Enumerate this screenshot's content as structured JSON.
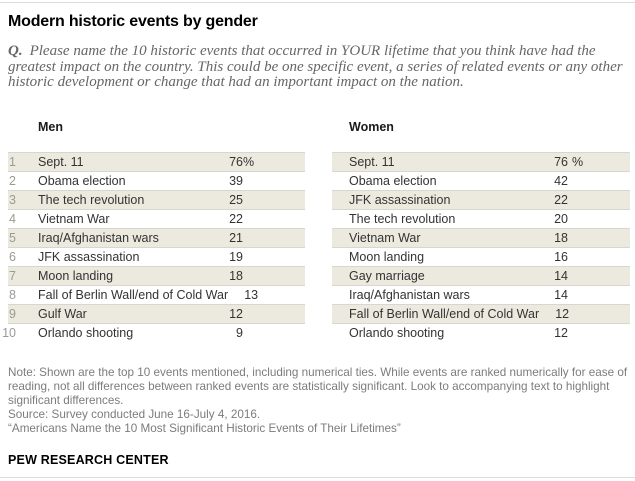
{
  "figure": {
    "title": "Modern historic events by gender",
    "question": {
      "label": "Q.",
      "lines": [
        "Please name the 10 historic events that occurred in YOUR lifetime that you think have had the",
        "greatest impact on the country. This could be one specific event, a series of related events or any other",
        "historic development or change that had an important impact on the nation."
      ]
    },
    "tables": [
      {
        "header": "Men",
        "rows": [
          {
            "rank": "1",
            "event": "Sept. 11",
            "value": "76",
            "pct": "%"
          },
          {
            "rank": "2",
            "event": "Obama election",
            "value": "39",
            "pct": ""
          },
          {
            "rank": "3",
            "event": "The tech revolution",
            "value": "25",
            "pct": ""
          },
          {
            "rank": "4",
            "event": "Vietnam War",
            "value": "22",
            "pct": ""
          },
          {
            "rank": "5",
            "event": "Iraq/Afghanistan wars",
            "value": "21",
            "pct": ""
          },
          {
            "rank": "6",
            "event": "JFK assassination",
            "value": "19",
            "pct": ""
          },
          {
            "rank": "7",
            "event": "Moon landing",
            "value": "18",
            "pct": ""
          },
          {
            "rank": "8",
            "event": "Fall of Berlin Wall/end of Cold War",
            "value": "13",
            "pct": ""
          },
          {
            "rank": "9",
            "event": "Gulf War",
            "value": "12",
            "pct": ""
          },
          {
            "rank": "10",
            "event": "Orlando shooting",
            "value": "9",
            "pct": ""
          }
        ]
      },
      {
        "header": "Women",
        "rows": [
          {
            "rank": "",
            "event": "Sept. 11",
            "value": "76",
            "pct": "%"
          },
          {
            "rank": "",
            "event": "Obama election",
            "value": "42",
            "pct": ""
          },
          {
            "rank": "",
            "event": "JFK assassination",
            "value": "22",
            "pct": ""
          },
          {
            "rank": "",
            "event": "The tech revolution",
            "value": "20",
            "pct": ""
          },
          {
            "rank": "",
            "event": "Vietnam War",
            "value": "18",
            "pct": ""
          },
          {
            "rank": "",
            "event": "Moon landing",
            "value": "16",
            "pct": ""
          },
          {
            "rank": "",
            "event": "Gay marriage",
            "value": "14",
            "pct": ""
          },
          {
            "rank": "",
            "event": "Iraq/Afghanistan wars",
            "value": "14",
            "pct": ""
          },
          {
            "rank": "",
            "event": "Fall of Berlin Wall/end of Cold War",
            "value": "12",
            "pct": ""
          },
          {
            "rank": "",
            "event": "Orlando shooting",
            "value": "12",
            "pct": ""
          }
        ]
      }
    ],
    "footer": {
      "note": "Note: Shown are the top 10 events mentioned, including numerical ties. While events are ranked numerically for ease of reading, not all differences between ranked events are statistically significant. Look to accompanying text to highlight significant differences.",
      "source": "Source: Survey conducted June 16-July 4, 2016.",
      "report": "“Americans Name the 10 Most Significant Historic Events of Their Lifetimes”",
      "brand": "PEW RESEARCH CENTER"
    },
    "colors": {
      "row_shade": "#eceadf",
      "row_divider": "#d8d7cf",
      "rank_gray": "#9b9b95",
      "body_text": "#333333",
      "note_gray": "#7c7c7c",
      "question_gray": "#666668",
      "page_rule": "#dcdcd8"
    }
  },
  "chart_data": {
    "type": "table",
    "title": "Modern historic events by gender",
    "unit": "%",
    "series": [
      {
        "name": "Men",
        "categories": [
          "Sept. 11",
          "Obama election",
          "The tech revolution",
          "Vietnam War",
          "Iraq/Afghanistan wars",
          "JFK assassination",
          "Moon landing",
          "Fall of Berlin Wall/end of Cold War",
          "Gulf War",
          "Orlando shooting"
        ],
        "ranks": [
          1,
          2,
          3,
          4,
          5,
          6,
          7,
          8,
          9,
          10
        ],
        "values": [
          76,
          39,
          25,
          22,
          21,
          19,
          18,
          13,
          12,
          9
        ]
      },
      {
        "name": "Women",
        "categories": [
          "Sept. 11",
          "Obama election",
          "JFK assassination",
          "The tech revolution",
          "Vietnam War",
          "Moon landing",
          "Gay marriage",
          "Iraq/Afghanistan wars",
          "Fall of Berlin Wall/end of Cold War",
          "Orlando shooting"
        ],
        "values": [
          76,
          42,
          22,
          20,
          18,
          16,
          14,
          14,
          12,
          12
        ]
      }
    ]
  }
}
